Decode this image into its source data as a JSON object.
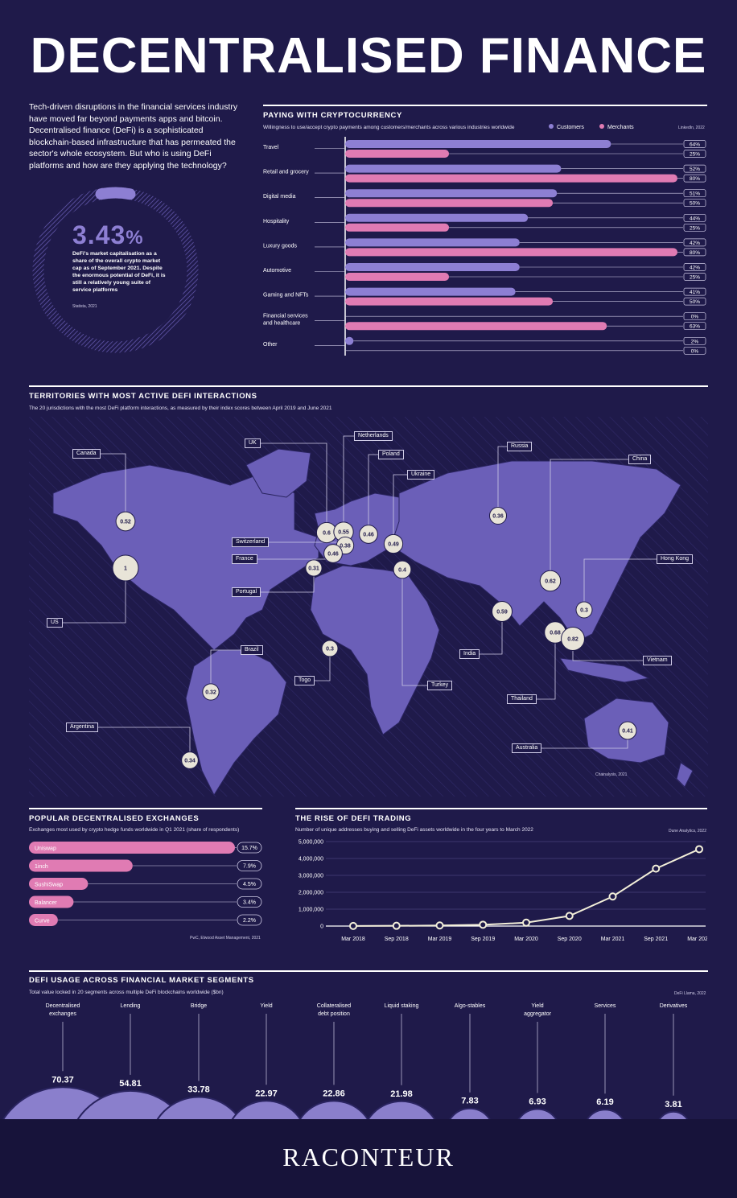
{
  "title": "DECENTRALISED FINANCE",
  "intro": "Tech-driven disruptions in the financial services industry have moved far beyond payments apps and bitcoin. Decentralised finance (DeFi) is a sophisticated blockchain-based infrastructure that has permeated the sector's whole ecosystem. But who is using DeFi platforms and how are they applying the technology?",
  "stat": {
    "value": "3.43",
    "unit": "%",
    "fraction": 0.0343,
    "text": "DeFi's market capitalisation as a share of the overall crypto market cap as of September 2021. Despite the enormous potential of DeFi, it is still a relatively young suite of service platforms",
    "source": "Statista, 2021"
  },
  "colors": {
    "bg": "#1f1a4a",
    "customers": "#8d7fd3",
    "merchants": "#e07bb3",
    "land": "#6b5fb8",
    "land_light": "#8a7fcc",
    "bubble": "#e8e4d8"
  },
  "chart_data": [
    {
      "type": "bar",
      "id": "crypto-payments",
      "title": "PAYING WITH CRYPTOCURRENCY",
      "subtitle": "Willingness to use/accept crypto payments among customers/merchants across various industries worldwide",
      "source": "LinkedIn, 2022",
      "orientation": "horizontal",
      "legend": [
        "Customers",
        "Merchants"
      ],
      "categories": [
        "Travel",
        "Retail and grocery",
        "Digital media",
        "Hospitality",
        "Luxury goods",
        "Automotive",
        "Gaming and NFTs",
        "Financial services\nand healthcare",
        "Other"
      ],
      "series": [
        {
          "name": "Customers",
          "values": [
            64,
            52,
            51,
            44,
            42,
            42,
            41,
            0,
            2
          ]
        },
        {
          "name": "Merchants",
          "values": [
            25,
            80,
            50,
            25,
            80,
            25,
            50,
            63,
            0
          ]
        }
      ],
      "xlim": [
        0,
        80
      ]
    },
    {
      "type": "scatter",
      "id": "territories",
      "title": "TERRITORIES WITH MOST ACTIVE DEFI INTERACTIONS",
      "subtitle": "The 20 jurisdictions with the most DeFi platform interactions, as measured by their index scores between April 2019 and June 2021",
      "source": "Chainalysis, 2021",
      "points": [
        {
          "name": "Canada",
          "value": 0.52
        },
        {
          "name": "US",
          "value": 1
        },
        {
          "name": "UK",
          "value": 0.6
        },
        {
          "name": "Netherlands",
          "value": 0.55
        },
        {
          "name": "Switzerland",
          "value": 0.38
        },
        {
          "name": "France",
          "value": 0.46
        },
        {
          "name": "Poland",
          "value": 0.46
        },
        {
          "name": "Ukraine",
          "value": 0.49
        },
        {
          "name": "Portugal",
          "value": 0.31
        },
        {
          "name": "Turkey",
          "value": 0.4
        },
        {
          "name": "Russia",
          "value": 0.36
        },
        {
          "name": "China",
          "value": 0.62
        },
        {
          "name": "Hong Kong",
          "value": 0.3
        },
        {
          "name": "India",
          "value": 0.59
        },
        {
          "name": "Thailand",
          "value": 0.68
        },
        {
          "name": "Vietnam",
          "value": 0.82
        },
        {
          "name": "Togo",
          "value": 0.3
        },
        {
          "name": "Brazil",
          "value": 0.32
        },
        {
          "name": "Argentina",
          "value": 0.34
        },
        {
          "name": "Australia",
          "value": 0.41
        }
      ]
    },
    {
      "type": "bar",
      "id": "exchanges",
      "title": "POPULAR DECENTRALISED EXCHANGES",
      "subtitle": "Exchanges most used by crypto hedge funds worldwide in Q1 2021 (share of respondents)",
      "source": "PwC, Elwood Asset Management, 2021",
      "orientation": "horizontal",
      "categories": [
        "Uniswap",
        "1inch",
        "SushiSwap",
        "Balancer",
        "Curve"
      ],
      "values": [
        15.7,
        7.9,
        4.5,
        3.4,
        2.2
      ],
      "labels": [
        "15.7%",
        "7.9%",
        "4.5%",
        "3.4%",
        "2.2%"
      ]
    },
    {
      "type": "line",
      "id": "defi-trading",
      "title": "THE RISE OF DEFI TRADING",
      "subtitle": "Number of unique addresses buying and selling DeFi assets worldwide in the four years to March 2022",
      "source": "Dune Analytics, 2022",
      "x": [
        "Mar 2018",
        "Sep 2018",
        "Mar 2019",
        "Sep 2019",
        "Mar 2020",
        "Sep 2020",
        "Mar 2021",
        "Sep 2021",
        "Mar 2022"
      ],
      "y": [
        5000,
        15000,
        35000,
        80000,
        200000,
        600000,
        1750000,
        3400000,
        4550000
      ],
      "yticks": [
        "5,000,000",
        "4,000,000",
        "3,000,000",
        "2,000,000",
        "1,000,000",
        "0"
      ],
      "ylim": [
        0,
        5000000
      ]
    },
    {
      "type": "bar",
      "id": "segments",
      "title": "DEFI USAGE ACROSS FINANCIAL MARKET SEGMENTS",
      "subtitle": "Total value locked in 20 segments across multiple DeFi blockchains worldwide ($bn)",
      "source": "DeFi Llama, 2022",
      "categories": [
        "Decentralised\nexchanges",
        "Lending",
        "Bridge",
        "Yield",
        "Collateralised\ndebt position",
        "Liquid staking",
        "Algo-stables",
        "Yield\naggregator",
        "Services",
        "Derivatives"
      ],
      "values": [
        70.37,
        54.81,
        33.78,
        22.97,
        22.86,
        21.98,
        7.83,
        6.93,
        6.19,
        3.81
      ]
    }
  ],
  "brand": "RACONTEUR"
}
